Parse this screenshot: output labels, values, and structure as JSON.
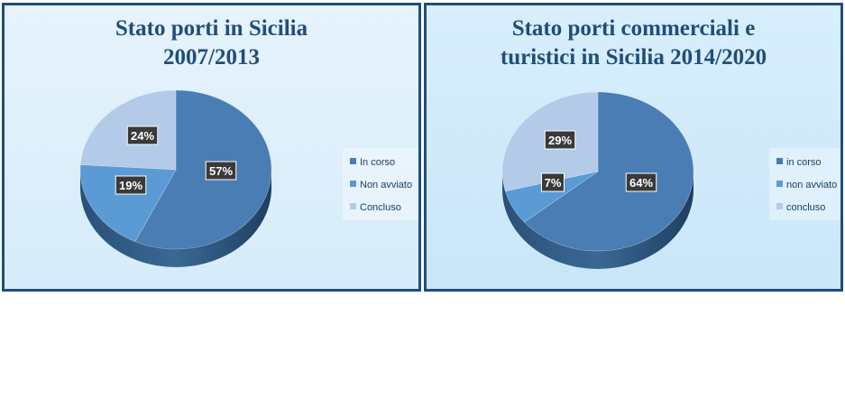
{
  "chart_data": [
    {
      "type": "pie",
      "title": [
        "Stato porti in Sicilia",
        "2007/2013"
      ],
      "categories": [
        "In corso",
        "Non avviato",
        "Concluso"
      ],
      "values": [
        57,
        19,
        24
      ],
      "labels": [
        "57%",
        "19%",
        "24%"
      ],
      "colors": [
        "#4a7db3",
        "#5b9bd5",
        "#b3cbe9"
      ],
      "legend_position": "right"
    },
    {
      "type": "pie",
      "title": [
        "Stato porti commerciali e",
        "turistici in Sicilia 2014/2020"
      ],
      "categories": [
        "in corso",
        "non avviato",
        "concluso"
      ],
      "values": [
        64,
        7,
        29
      ],
      "labels": [
        "64%",
        "7%",
        "29%"
      ],
      "colors": [
        "#4a7db3",
        "#5b9bd5",
        "#b3cbe9"
      ],
      "legend_position": "right"
    }
  ]
}
